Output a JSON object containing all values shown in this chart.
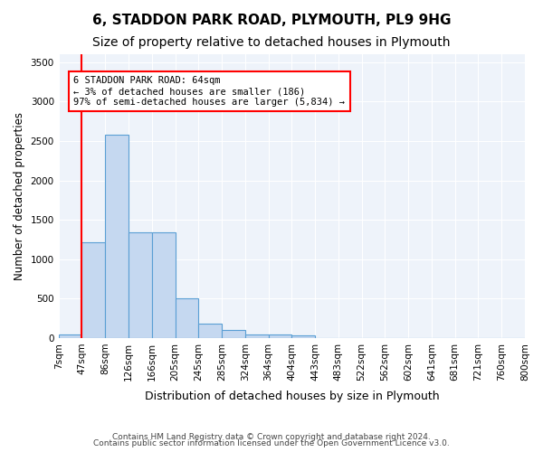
{
  "title1": "6, STADDON PARK ROAD, PLYMOUTH, PL9 9HG",
  "title2": "Size of property relative to detached houses in Plymouth",
  "xlabel": "Distribution of detached houses by size in Plymouth",
  "ylabel": "Number of detached properties",
  "bar_color": "#c5d8f0",
  "bar_edge_color": "#5a9fd4",
  "bar_heights": [
    50,
    1220,
    2580,
    1340,
    1340,
    500,
    185,
    100,
    45,
    45,
    30,
    0,
    0,
    0,
    0,
    0,
    0,
    0,
    0,
    0
  ],
  "bin_labels": [
    "7sqm",
    "47sqm",
    "86sqm",
    "126sqm",
    "166sqm",
    "205sqm",
    "245sqm",
    "285sqm",
    "324sqm",
    "364sqm",
    "404sqm",
    "443sqm",
    "483sqm",
    "522sqm",
    "562sqm",
    "602sqm",
    "641sqm",
    "681sqm",
    "721sqm",
    "760sqm",
    "800sqm"
  ],
  "n_bins": 20,
  "ylim": [
    0,
    3600
  ],
  "yticks": [
    0,
    500,
    1000,
    1500,
    2000,
    2500,
    3000,
    3500
  ],
  "red_line_x": 1,
  "annotation_text": "6 STADDON PARK ROAD: 64sqm\n← 3% of detached houses are smaller (186)\n97% of semi-detached houses are larger (5,834) →",
  "footer1": "Contains HM Land Registry data © Crown copyright and database right 2024.",
  "footer2": "Contains public sector information licensed under the Open Government Licence v3.0.",
  "background_color": "#eef3fa",
  "grid_color": "#ffffff",
  "title_fontsize": 11,
  "subtitle_fontsize": 10,
  "tick_fontsize": 7.5
}
